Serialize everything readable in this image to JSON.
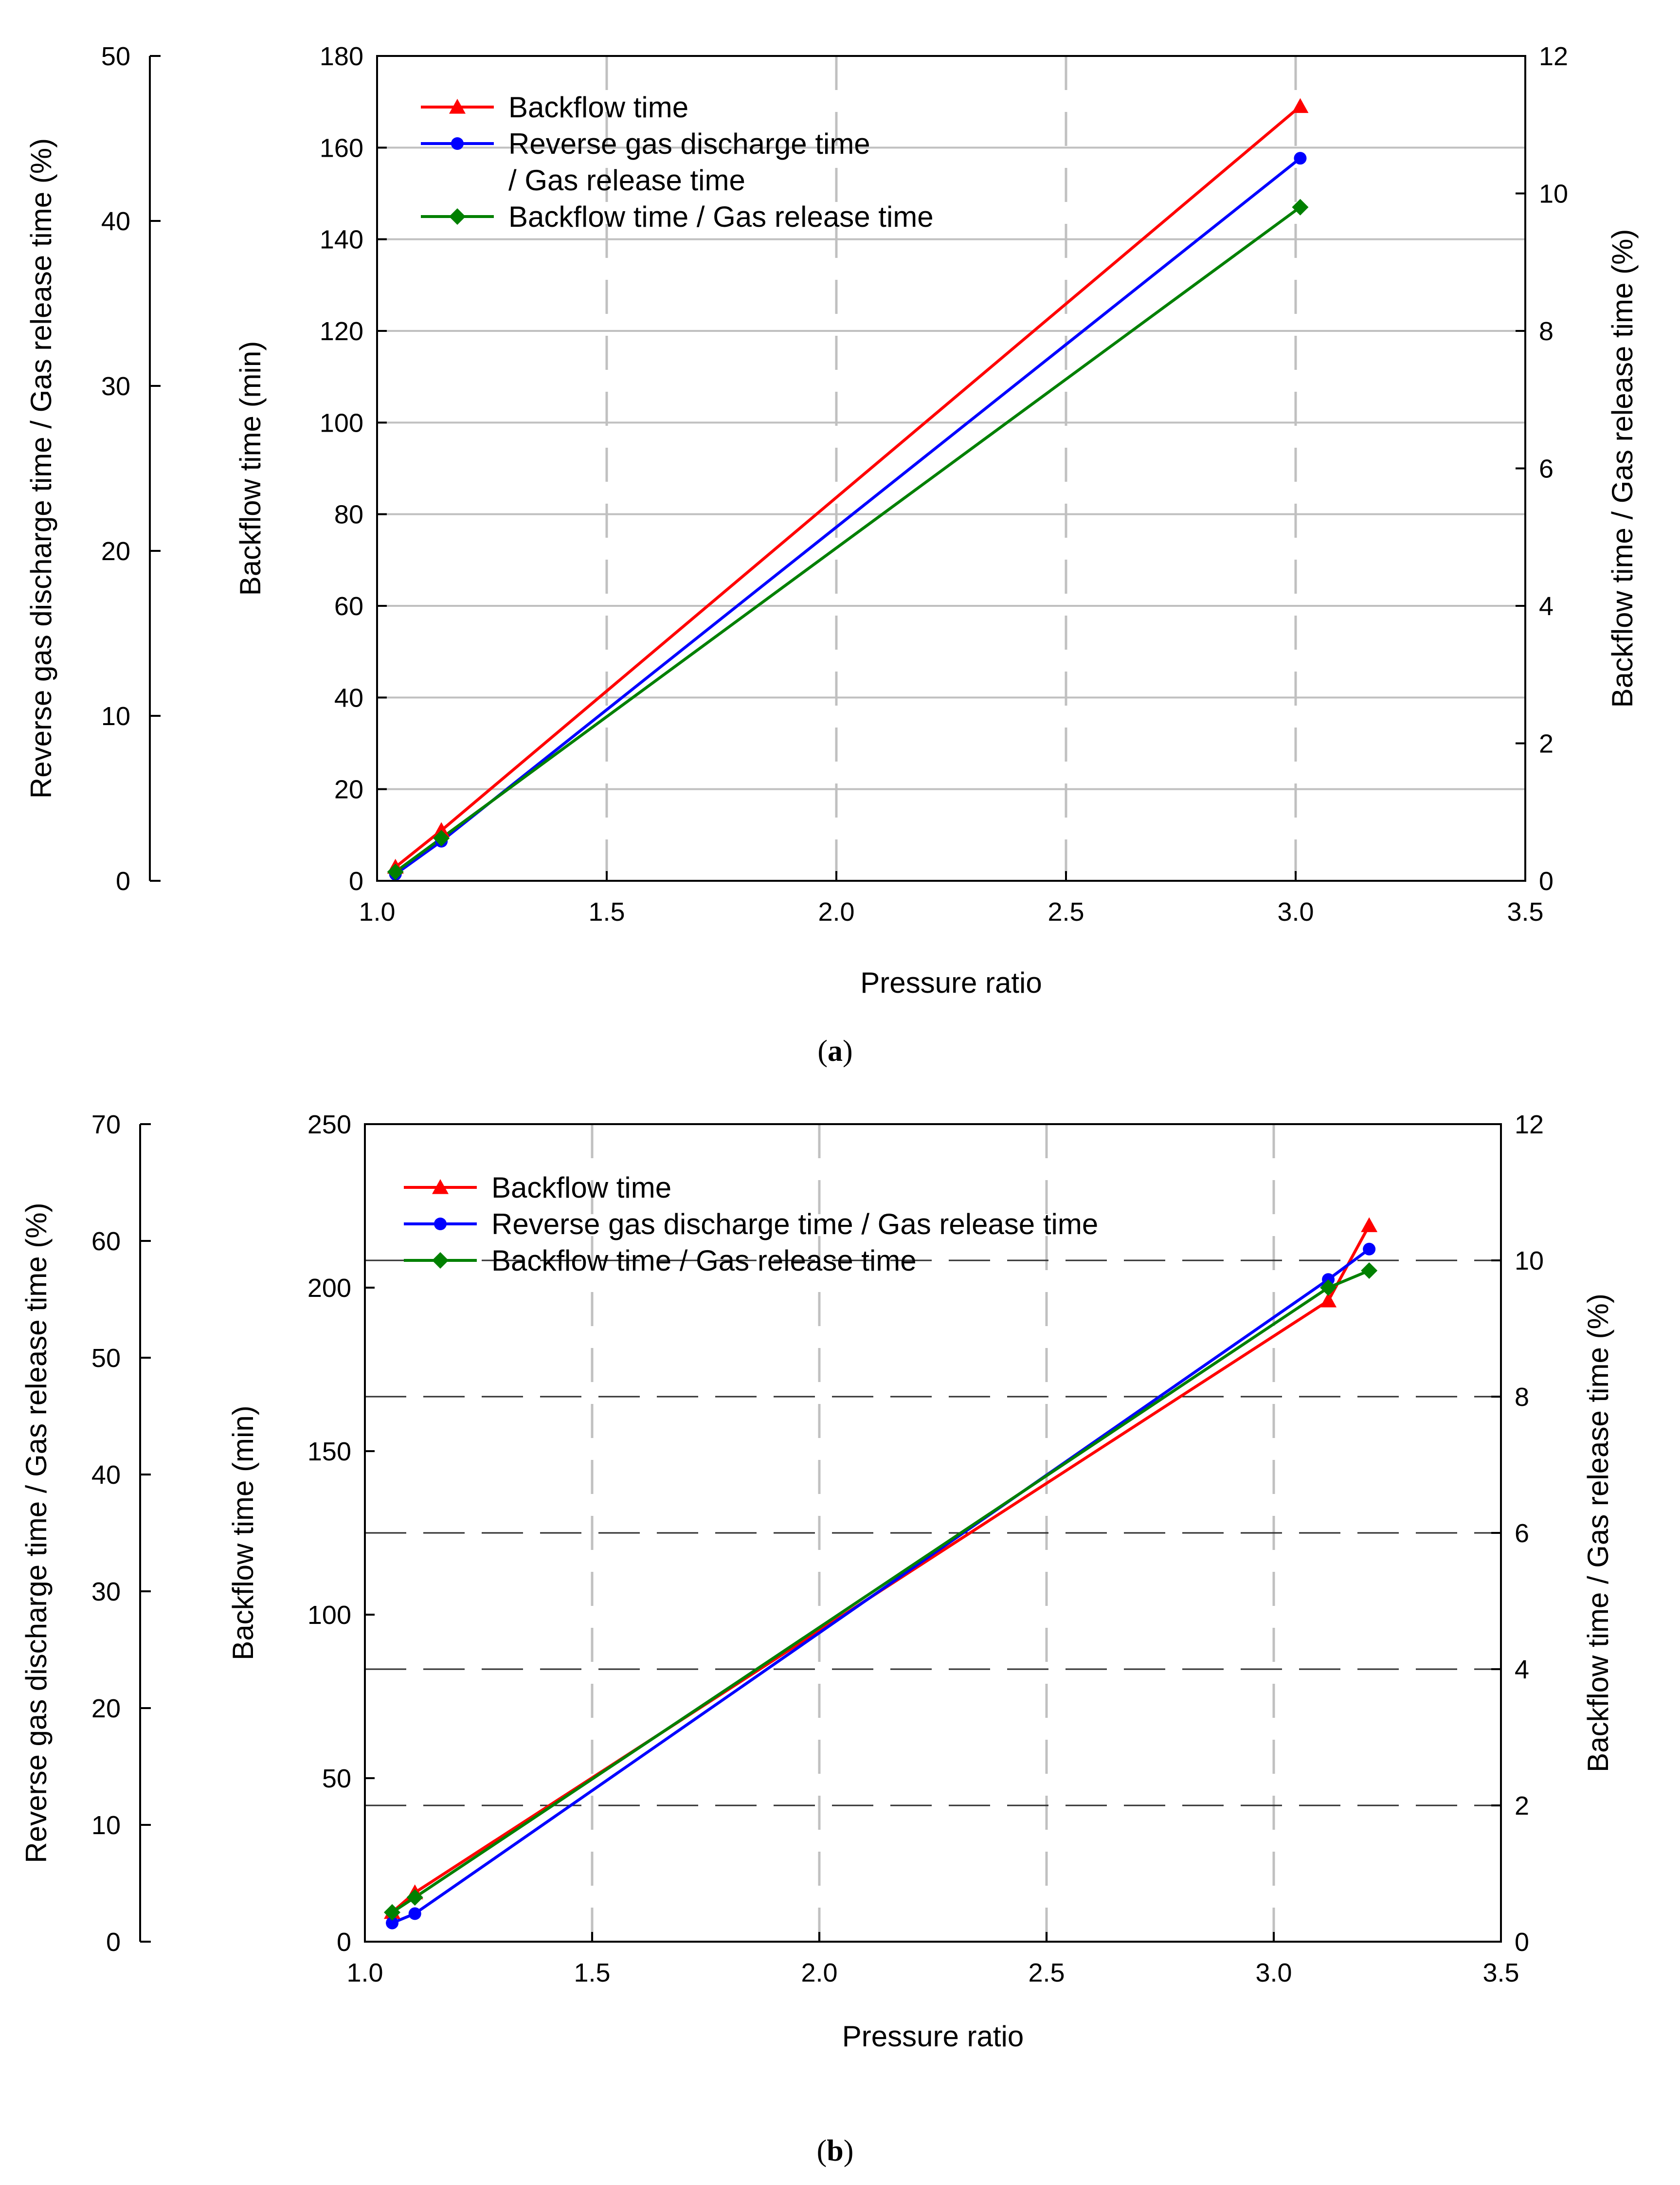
{
  "chart_data": [
    {
      "type": "line",
      "caption_letter": "a",
      "xlabel": "Pressure ratio",
      "ylabel": "Backflow time (min)",
      "ylabel_right": "Backflow time / Gas release time (%)",
      "ylabel_far_left": "Reverse gas discharge time / Gas release time (%)",
      "xlim": [
        1.0,
        3.5
      ],
      "ylim": [
        0,
        180
      ],
      "ylim_right": [
        0,
        12
      ],
      "ylim_far_left": [
        0,
        50
      ],
      "xticks": [
        "1.0",
        "1.5",
        "2.0",
        "2.5",
        "3.0",
        "3.5"
      ],
      "yticks": [
        "0",
        "20",
        "40",
        "60",
        "80",
        "100",
        "120",
        "140",
        "160",
        "180"
      ],
      "yticks_right": [
        "0",
        "2",
        "4",
        "6",
        "8",
        "10",
        "12"
      ],
      "yticks_far_left": [
        "0",
        "10",
        "20",
        "30",
        "40",
        "50"
      ],
      "legend_position": "top-left",
      "grid": "vertical dashed, horizontal solid",
      "series": [
        {
          "name": "Backflow time",
          "legend_lines": [
            "Backflow time"
          ],
          "color": "#ff0000",
          "marker": "triangle",
          "axis": "left",
          "x": [
            1.04,
            1.14,
            3.01
          ],
          "y": [
            3,
            11,
            169
          ]
        },
        {
          "name": "Reverse gas discharge time / Gas release time",
          "legend_lines": [
            "Reverse gas discharge time",
            "/ Gas release time"
          ],
          "color": "#0000ff",
          "marker": "circle",
          "axis": "far_left",
          "x": [
            1.04,
            1.14,
            3.01
          ],
          "y": [
            0.4,
            2.4,
            43.8
          ]
        },
        {
          "name": "Backflow time / Gas release time",
          "legend_lines": [
            "Backflow time / Gas release time"
          ],
          "color": "#008000",
          "marker": "diamond",
          "axis": "right",
          "x": [
            1.04,
            1.14,
            3.01
          ],
          "y": [
            0.13,
            0.62,
            9.8
          ]
        }
      ]
    },
    {
      "type": "line",
      "caption_letter": "b",
      "xlabel": "Pressure ratio",
      "ylabel": "Backflow time (min)",
      "ylabel_right": "Backflow time / Gas release time (%)",
      "ylabel_far_left": "Reverse gas discharge time / Gas release time (%)",
      "xlim": [
        1.0,
        3.5
      ],
      "ylim": [
        0,
        250
      ],
      "ylim_right": [
        0,
        12
      ],
      "ylim_far_left": [
        0,
        70
      ],
      "xticks": [
        "1.0",
        "1.5",
        "2.0",
        "2.5",
        "3.0",
        "3.5"
      ],
      "yticks": [
        "0",
        "50",
        "100",
        "150",
        "200",
        "250"
      ],
      "yticks_right": [
        "0",
        "2",
        "4",
        "6",
        "8",
        "10",
        "12"
      ],
      "yticks_far_left": [
        "0",
        "10",
        "20",
        "30",
        "40",
        "50",
        "60",
        "70"
      ],
      "legend_position": "top-left",
      "grid": "vertical dashed, horizontal dashed",
      "series": [
        {
          "name": "Backflow time",
          "legend_lines": [
            "Backflow time"
          ],
          "color": "#ff0000",
          "marker": "triangle",
          "axis": "left",
          "x": [
            1.06,
            1.11,
            3.12,
            3.21
          ],
          "y": [
            9,
            15,
            196,
            219
          ]
        },
        {
          "name": "Reverse gas discharge time / Gas release time",
          "legend_lines": [
            "Reverse gas discharge time / Gas release time"
          ],
          "color": "#0000ff",
          "marker": "circle",
          "axis": "far_left",
          "x": [
            1.06,
            1.11,
            3.12,
            3.21
          ],
          "y": [
            1.6,
            2.4,
            56.7,
            59.3
          ]
        },
        {
          "name": "Backflow time / Gas release time",
          "legend_lines": [
            "Backflow time / Gas release time"
          ],
          "color": "#008000",
          "marker": "diamond",
          "axis": "right",
          "x": [
            1.06,
            1.11,
            3.12,
            3.21
          ],
          "y": [
            0.43,
            0.65,
            9.6,
            9.85
          ]
        }
      ]
    }
  ]
}
